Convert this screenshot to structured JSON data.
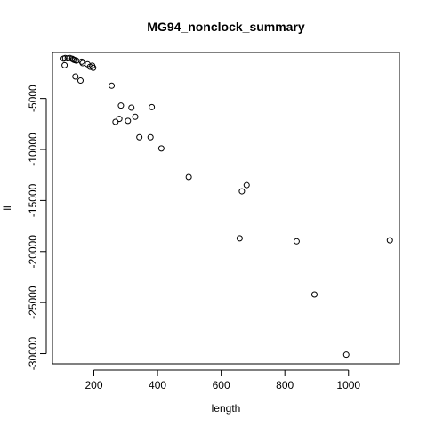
{
  "chart_data": {
    "type": "scatter",
    "title": "MG94_nonclock_summary",
    "xlabel": "length",
    "ylabel": "ll",
    "xlim": [
      70,
      1160
    ],
    "ylim": [
      -31000,
      -500
    ],
    "xticks": [
      200,
      400,
      600,
      800,
      1000
    ],
    "yticks": [
      -5000,
      -10000,
      -15000,
      -20000,
      -25000,
      -30000
    ],
    "xtick_labels": [
      "200",
      "400",
      "600",
      "800",
      "1000"
    ],
    "ytick_labels": [
      "-5000",
      "-10000",
      "-15000",
      "-20000",
      "-25000",
      "-30000"
    ],
    "grid": false,
    "legend": "none",
    "points": [
      {
        "x": 105,
        "y": -1100
      },
      {
        "x": 110,
        "y": -1050
      },
      {
        "x": 118,
        "y": -1080
      },
      {
        "x": 125,
        "y": -1050
      },
      {
        "x": 132,
        "y": -1120
      },
      {
        "x": 136,
        "y": -1200
      },
      {
        "x": 140,
        "y": -1250
      },
      {
        "x": 145,
        "y": -1300
      },
      {
        "x": 108,
        "y": -1750
      },
      {
        "x": 162,
        "y": -1400
      },
      {
        "x": 165,
        "y": -1550
      },
      {
        "x": 180,
        "y": -1650
      },
      {
        "x": 188,
        "y": -1900
      },
      {
        "x": 195,
        "y": -1800
      },
      {
        "x": 198,
        "y": -2000
      },
      {
        "x": 142,
        "y": -2850
      },
      {
        "x": 158,
        "y": -3250
      },
      {
        "x": 256,
        "y": -3750
      },
      {
        "x": 268,
        "y": -7300
      },
      {
        "x": 280,
        "y": -7000
      },
      {
        "x": 285,
        "y": -5700
      },
      {
        "x": 307,
        "y": -7200
      },
      {
        "x": 318,
        "y": -5900
      },
      {
        "x": 330,
        "y": -6800
      },
      {
        "x": 343,
        "y": -8800
      },
      {
        "x": 378,
        "y": -8800
      },
      {
        "x": 382,
        "y": -5850
      },
      {
        "x": 412,
        "y": -9900
      },
      {
        "x": 498,
        "y": -12700
      },
      {
        "x": 658,
        "y": -18700
      },
      {
        "x": 665,
        "y": -14100
      },
      {
        "x": 680,
        "y": -13500
      },
      {
        "x": 837,
        "y": -19000
      },
      {
        "x": 893,
        "y": -24200
      },
      {
        "x": 993,
        "y": -30100
      },
      {
        "x": 1130,
        "y": -18900
      }
    ]
  }
}
